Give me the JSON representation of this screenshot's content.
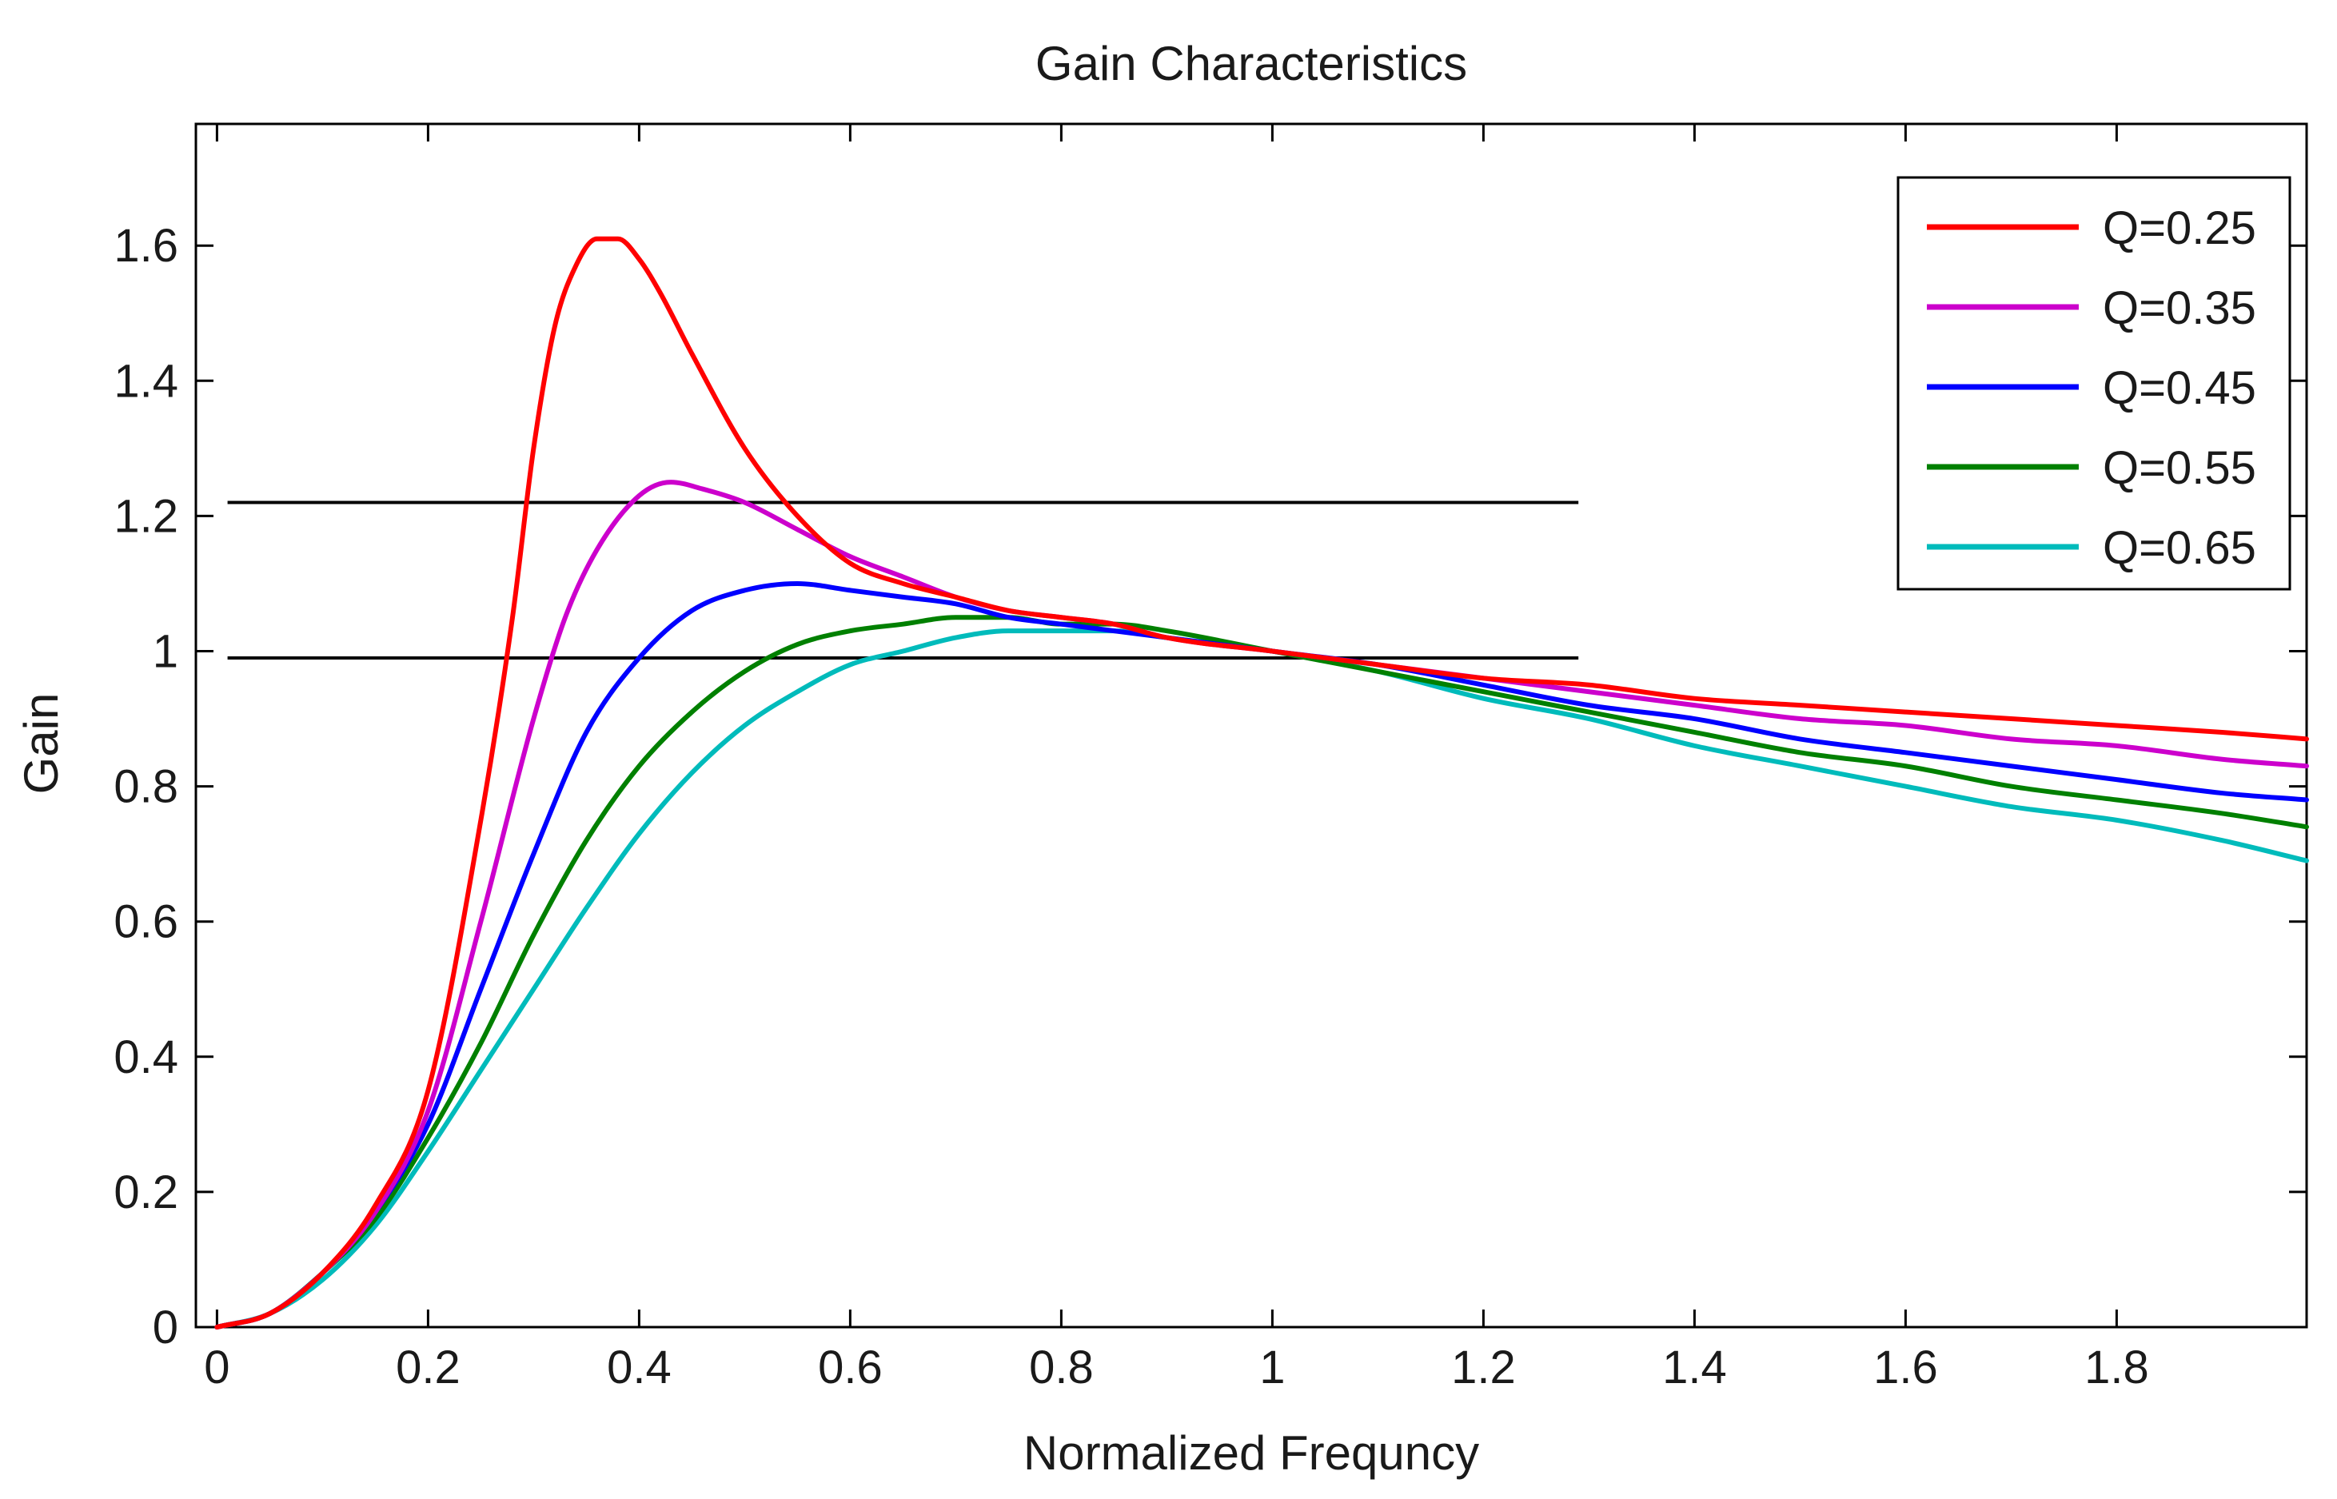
{
  "chart_data": {
    "type": "line",
    "title": "Gain Characteristics",
    "xlabel": "Normalized Frequncy",
    "ylabel": "Gain",
    "xlim": [
      -0.02,
      1.98
    ],
    "ylim": [
      0,
      1.78
    ],
    "x_ticks": [
      0,
      0.2,
      0.4,
      0.6,
      0.8,
      1,
      1.2,
      1.4,
      1.6,
      1.8
    ],
    "x_tick_labels": [
      "0",
      "0.2",
      "0.4",
      "0.6",
      "0.8",
      "1",
      "1.2",
      "1.4",
      "1.6",
      "1.8"
    ],
    "y_ticks": [
      0,
      0.2,
      0.4,
      0.6,
      0.8,
      1,
      1.2,
      1.4,
      1.6
    ],
    "y_tick_labels": [
      "0",
      "0.2",
      "0.4",
      "0.6",
      "0.8",
      "1",
      "1.2",
      "1.4",
      "1.6"
    ],
    "grid": false,
    "legend_position": "top-right",
    "series": [
      {
        "name": "Q=0.25",
        "color": "#ff0000",
        "x": [
          0,
          0.05,
          0.1,
          0.15,
          0.2,
          0.25,
          0.28,
          0.3,
          0.32,
          0.34,
          0.36,
          0.38,
          0.4,
          0.42,
          0.45,
          0.5,
          0.55,
          0.6,
          0.65,
          0.7,
          0.75,
          0.8,
          0.85,
          0.9,
          1.0,
          1.1,
          1.2,
          1.3,
          1.4,
          1.5,
          1.6,
          1.7,
          1.8,
          1.9,
          1.98
        ],
        "y": [
          0,
          0.02,
          0.08,
          0.18,
          0.35,
          0.75,
          1.05,
          1.3,
          1.48,
          1.57,
          1.61,
          1.61,
          1.58,
          1.53,
          1.44,
          1.3,
          1.2,
          1.13,
          1.1,
          1.08,
          1.06,
          1.05,
          1.04,
          1.02,
          1.0,
          0.98,
          0.96,
          0.95,
          0.93,
          0.92,
          0.91,
          0.9,
          0.89,
          0.88,
          0.87
        ]
      },
      {
        "name": "Q=0.35",
        "color": "#cc00cc",
        "x": [
          0,
          0.05,
          0.1,
          0.15,
          0.2,
          0.25,
          0.3,
          0.33,
          0.36,
          0.4,
          0.43,
          0.46,
          0.5,
          0.55,
          0.6,
          0.65,
          0.7,
          0.75,
          0.8,
          0.85,
          0.9,
          1.0,
          1.1,
          1.2,
          1.3,
          1.4,
          1.5,
          1.6,
          1.7,
          1.8,
          1.9,
          1.98
        ],
        "y": [
          0,
          0.02,
          0.08,
          0.17,
          0.32,
          0.6,
          0.9,
          1.05,
          1.15,
          1.23,
          1.25,
          1.24,
          1.22,
          1.18,
          1.14,
          1.11,
          1.08,
          1.06,
          1.05,
          1.04,
          1.02,
          1.0,
          0.98,
          0.96,
          0.94,
          0.92,
          0.9,
          0.89,
          0.87,
          0.86,
          0.84,
          0.83
        ]
      },
      {
        "name": "Q=0.45",
        "color": "#0000ff",
        "x": [
          0,
          0.05,
          0.1,
          0.15,
          0.2,
          0.25,
          0.3,
          0.35,
          0.4,
          0.45,
          0.5,
          0.55,
          0.6,
          0.65,
          0.7,
          0.75,
          0.8,
          0.85,
          0.9,
          1.0,
          1.1,
          1.2,
          1.3,
          1.4,
          1.5,
          1.6,
          1.7,
          1.8,
          1.9,
          1.98
        ],
        "y": [
          0,
          0.02,
          0.08,
          0.17,
          0.3,
          0.5,
          0.7,
          0.88,
          0.99,
          1.06,
          1.09,
          1.1,
          1.09,
          1.08,
          1.07,
          1.05,
          1.04,
          1.03,
          1.02,
          1.0,
          0.98,
          0.95,
          0.92,
          0.9,
          0.87,
          0.85,
          0.83,
          0.81,
          0.79,
          0.78
        ]
      },
      {
        "name": "Q=0.55",
        "color": "#008000",
        "x": [
          0,
          0.05,
          0.1,
          0.15,
          0.2,
          0.25,
          0.3,
          0.35,
          0.4,
          0.45,
          0.5,
          0.55,
          0.6,
          0.65,
          0.7,
          0.75,
          0.8,
          0.85,
          0.9,
          1.0,
          1.1,
          1.2,
          1.3,
          1.4,
          1.5,
          1.6,
          1.7,
          1.8,
          1.9,
          1.98
        ],
        "y": [
          0,
          0.02,
          0.08,
          0.16,
          0.28,
          0.42,
          0.58,
          0.72,
          0.83,
          0.91,
          0.97,
          1.01,
          1.03,
          1.04,
          1.05,
          1.05,
          1.04,
          1.04,
          1.03,
          1.0,
          0.97,
          0.94,
          0.91,
          0.88,
          0.85,
          0.83,
          0.8,
          0.78,
          0.76,
          0.74
        ]
      },
      {
        "name": "Q=0.65",
        "color": "#00bbbb",
        "x": [
          0,
          0.05,
          0.1,
          0.15,
          0.2,
          0.25,
          0.3,
          0.35,
          0.4,
          0.45,
          0.5,
          0.55,
          0.6,
          0.65,
          0.7,
          0.75,
          0.8,
          0.85,
          0.9,
          1.0,
          1.1,
          1.2,
          1.3,
          1.4,
          1.5,
          1.6,
          1.7,
          1.8,
          1.9,
          1.98
        ],
        "y": [
          0,
          0.02,
          0.07,
          0.15,
          0.26,
          0.38,
          0.5,
          0.62,
          0.73,
          0.82,
          0.89,
          0.94,
          0.98,
          1.0,
          1.02,
          1.03,
          1.03,
          1.03,
          1.02,
          1.0,
          0.97,
          0.93,
          0.9,
          0.86,
          0.83,
          0.8,
          0.77,
          0.75,
          0.72,
          0.69
        ]
      }
    ],
    "reference_lines": [
      {
        "name": "upper-reference",
        "y": 1.22,
        "x_range": [
          0.01,
          1.29
        ],
        "color": "#000000"
      },
      {
        "name": "lower-reference",
        "y": 0.99,
        "x_range": [
          0.01,
          1.29
        ],
        "color": "#000000"
      }
    ]
  }
}
